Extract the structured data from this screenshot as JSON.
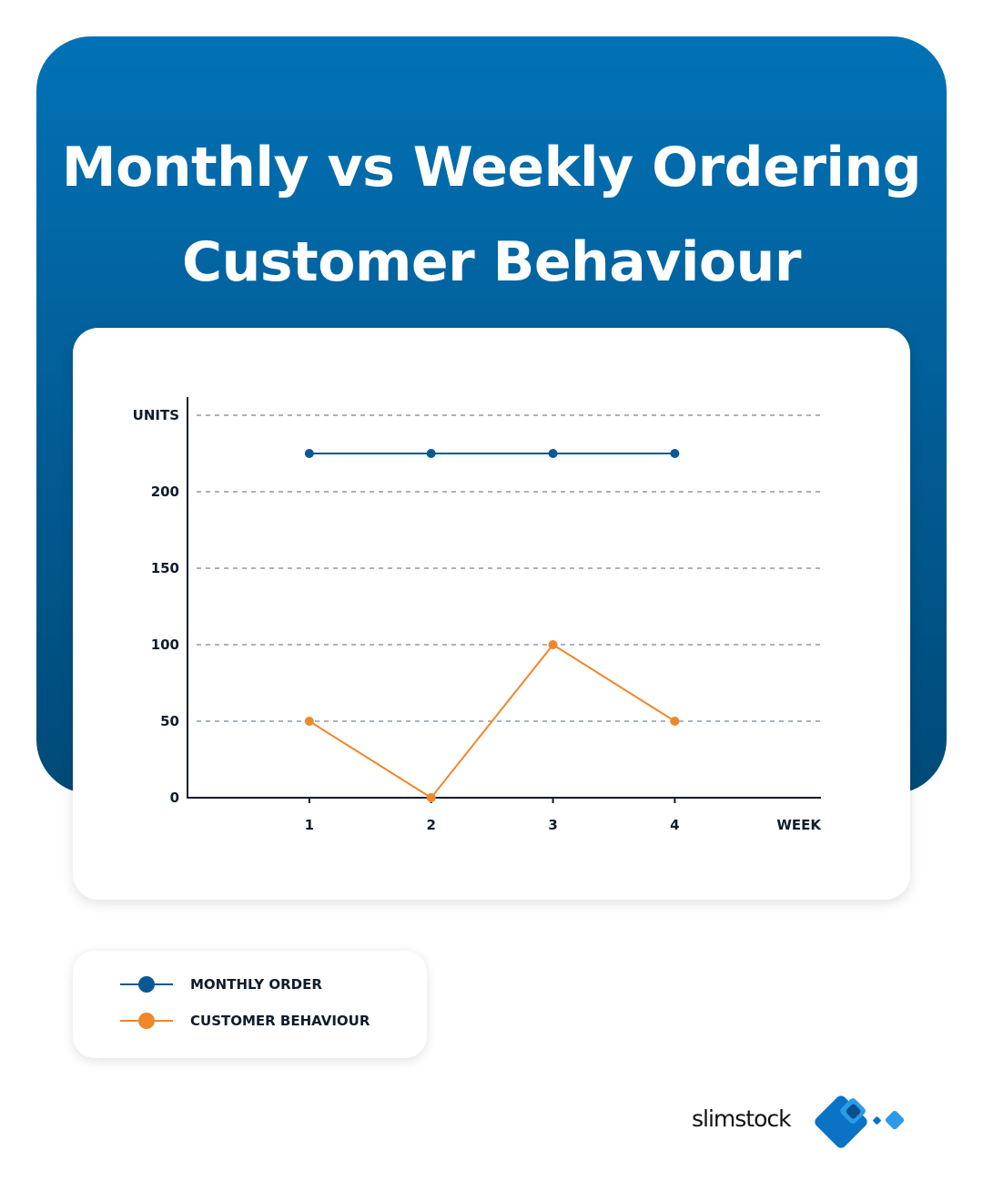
{
  "title": {
    "line1": "Monthly vs Weekly Ordering",
    "line2": "Customer Behaviour"
  },
  "colors": {
    "monthly": "#0a5894",
    "customer": "#f0862a",
    "hero_top": "#0172b6",
    "hero_bottom": "#004a78"
  },
  "chart_data": {
    "type": "line",
    "title": "Monthly vs Weekly Ordering Customer Behaviour",
    "xlabel": "WEEK",
    "ylabel": "UNITS",
    "x": [
      1,
      2,
      3,
      4
    ],
    "x_tick_labels": [
      "1",
      "2",
      "3",
      "4"
    ],
    "y_ticks": [
      0,
      50,
      100,
      150,
      200
    ],
    "y_tick_labels": [
      "0",
      "50",
      "100",
      "150",
      "200"
    ],
    "xlim": [
      0,
      5.2
    ],
    "ylim": [
      0,
      250
    ],
    "grid": "dashed horizontal",
    "series": [
      {
        "name": "MONTHLY ORDER",
        "color": "#0a5894",
        "values": [
          225,
          225,
          225,
          225
        ]
      },
      {
        "name": "CUSTOMER BEHAVIOUR",
        "color": "#f0862a",
        "values": [
          50,
          0,
          100,
          50
        ]
      }
    ]
  },
  "legend": {
    "placement": "bottom-left",
    "items": [
      {
        "label": "MONTHLY ORDER",
        "color": "#0a5894"
      },
      {
        "label": "CUSTOMER BEHAVIOUR",
        "color": "#f0862a"
      }
    ]
  },
  "brand": {
    "name": "slimstock",
    "logo_icon": "diamond-logo-icon",
    "primary": "#0a73c5",
    "secondary": "#2b9be8"
  }
}
